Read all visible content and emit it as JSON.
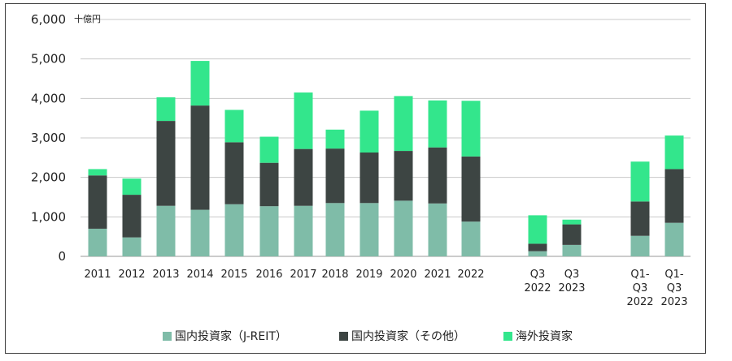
{
  "chart_data": {
    "type": "bar",
    "stacked": true,
    "unit_label": "十億円",
    "ylim": [
      0,
      6000
    ],
    "yticks": [
      0,
      1000,
      2000,
      3000,
      4000,
      5000,
      6000
    ],
    "ytick_labels": [
      "0",
      "1,000",
      "2,000",
      "3,000",
      "4,000",
      "5,000",
      "6,000"
    ],
    "grid": true,
    "legend_position": "bottom",
    "categories": [
      [
        "2011"
      ],
      [
        "2012"
      ],
      [
        "2013"
      ],
      [
        "2014"
      ],
      [
        "2015"
      ],
      [
        "2016"
      ],
      [
        "2017"
      ],
      [
        "2018"
      ],
      [
        "2019"
      ],
      [
        "2020"
      ],
      [
        "2021"
      ],
      [
        "2022"
      ],
      [
        "Q3",
        "2022"
      ],
      [
        "Q3",
        "2023"
      ],
      [
        "Q1-",
        "Q3",
        "2022"
      ],
      [
        "Q1-",
        "Q3",
        "2023"
      ]
    ],
    "series": [
      {
        "name": "国内投資家（J-REIT）",
        "color": "#7fbca8",
        "values": [
          700,
          480,
          1280,
          1180,
          1320,
          1270,
          1280,
          1350,
          1350,
          1410,
          1340,
          880,
          130,
          290,
          520,
          850
        ]
      },
      {
        "name": "国内投資家（その他）",
        "color": "#3d4543",
        "values": [
          1350,
          1080,
          2150,
          2640,
          1570,
          1100,
          1440,
          1380,
          1280,
          1260,
          1420,
          1650,
          190,
          520,
          870,
          1360
        ]
      },
      {
        "name": "海外投資家",
        "color": "#33e68c",
        "values": [
          160,
          410,
          600,
          1130,
          820,
          660,
          1430,
          480,
          1060,
          1390,
          1190,
          1410,
          720,
          120,
          1010,
          850
        ]
      }
    ]
  }
}
